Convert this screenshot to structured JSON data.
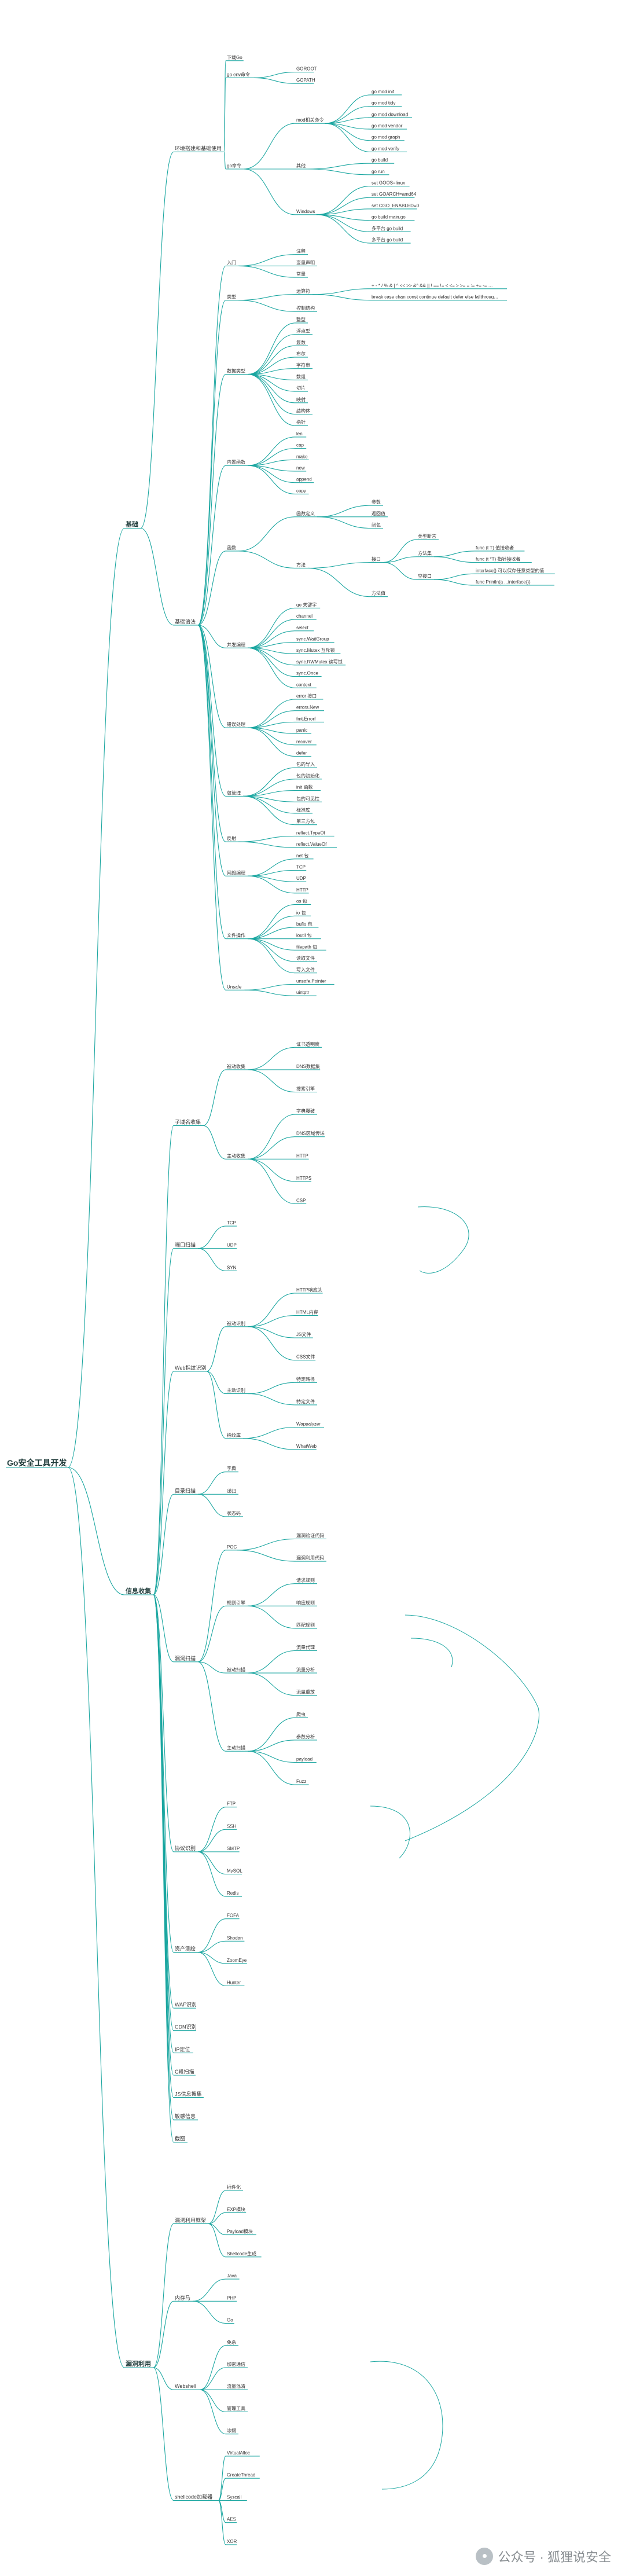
{
  "root": "Go安全工具开发",
  "branches": [
    {
      "label": "基础",
      "children": [
        {
          "label": "环境搭建和基础使用",
          "children": [
            {
              "label": "下载Go"
            },
            {
              "label": "go env命令",
              "children": [
                {
                  "label": "GOROOT"
                },
                {
                  "label": "GOPATH"
                }
              ]
            },
            {
              "label": "go命令",
              "children": [
                {
                  "label": "mod相关命令",
                  "children": [
                    {
                      "label": "go mod init"
                    },
                    {
                      "label": "go mod tidy"
                    },
                    {
                      "label": "go mod download"
                    },
                    {
                      "label": "go mod vendor"
                    },
                    {
                      "label": "go mod graph"
                    },
                    {
                      "label": "go mod verify"
                    }
                  ]
                },
                {
                  "label": "其他",
                  "children": [
                    {
                      "label": "go build"
                    },
                    {
                      "label": "go run"
                    }
                  ]
                },
                {
                  "label": "Windows",
                  "children": [
                    {
                      "label": "set GOOS=linux"
                    },
                    {
                      "label": "set GOARCH=amd64"
                    },
                    {
                      "label": "set CGO_ENABLED=0"
                    },
                    {
                      "label": "go build main.go"
                    },
                    {
                      "label": "多平台 go build"
                    },
                    {
                      "label": "多平台 go build"
                    }
                  ]
                }
              ]
            }
          ]
        },
        {
          "label": "基础语法",
          "children": [
            {
              "label": "入门",
              "children": [
                {
                  "label": "注释"
                },
                {
                  "label": "变量声明"
                },
                {
                  "label": "常量"
                }
              ]
            },
            {
              "label": "类型",
              "children": [
                {
                  "label": "运算符",
                  "children": [
                    {
                      "label": "+ - * / % & | ^ << >> &^ && || ! == != < <= > >= = := += -= *= /= %= &= |= ^= <<= >>= &^= ++ -- <- ..."
                    },
                    {
                      "label": "break case chan const continue default defer else fallthrough for func go goto if import interface map package range return select struct switch type var"
                    }
                  ]
                },
                {
                  "label": "控制结构"
                }
              ]
            },
            {
              "label": "数据类型",
              "children": [
                {
                  "label": "整型"
                },
                {
                  "label": "浮点型"
                },
                {
                  "label": "复数"
                },
                {
                  "label": "布尔"
                },
                {
                  "label": "字符串"
                },
                {
                  "label": "数组"
                },
                {
                  "label": "切片"
                },
                {
                  "label": "映射"
                },
                {
                  "label": "结构体"
                },
                {
                  "label": "指针"
                }
              ]
            },
            {
              "label": "内置函数",
              "children": [
                {
                  "label": "len"
                },
                {
                  "label": "cap"
                },
                {
                  "label": "make"
                },
                {
                  "label": "new"
                },
                {
                  "label": "append"
                },
                {
                  "label": "copy"
                }
              ]
            },
            {
              "label": "函数",
              "children": [
                {
                  "label": "函数定义",
                  "children": [
                    {
                      "label": "参数"
                    },
                    {
                      "label": "返回值"
                    },
                    {
                      "label": "闭包"
                    }
                  ]
                },
                {
                  "label": "方法",
                  "children": [
                    {
                      "label": "接口",
                      "children": [
                        {
                          "label": "类型断言"
                        },
                        {
                          "label": "方法集",
                          "children": [
                            {
                              "label": "func (t T) 值接收者"
                            },
                            {
                              "label": "func (t *T) 指针接收者"
                            }
                          ]
                        },
                        {
                          "label": "空接口",
                          "children": [
                            {
                              "label": "interface{} 可以保存任意类型的值"
                            },
                            {
                              "label": "func Println(a ...interface{})"
                            }
                          ]
                        }
                      ]
                    },
                    {
                      "label": "方法值"
                    }
                  ]
                }
              ]
            },
            {
              "label": "并发编程",
              "children": [
                {
                  "label": "go 关键字"
                },
                {
                  "label": "channel"
                },
                {
                  "label": "select"
                },
                {
                  "label": "sync.WaitGroup"
                },
                {
                  "label": "sync.Mutex 互斥锁"
                },
                {
                  "label": "sync.RWMutex 读写锁"
                },
                {
                  "label": "sync.Once"
                },
                {
                  "label": "context"
                }
              ]
            },
            {
              "label": "错误处理",
              "children": [
                {
                  "label": "error 接口"
                },
                {
                  "label": "errors.New"
                },
                {
                  "label": "fmt.Errorf"
                },
                {
                  "label": "panic"
                },
                {
                  "label": "recover"
                },
                {
                  "label": "defer"
                }
              ]
            },
            {
              "label": "包管理",
              "children": [
                {
                  "label": "包的导入"
                },
                {
                  "label": "包的初始化"
                },
                {
                  "label": "init 函数"
                },
                {
                  "label": "包的可见性"
                },
                {
                  "label": "标准库"
                },
                {
                  "label": "第三方包"
                }
              ]
            },
            {
              "label": "反射",
              "children": [
                {
                  "label": "reflect.TypeOf"
                },
                {
                  "label": "reflect.ValueOf"
                }
              ]
            },
            {
              "label": "网络编程",
              "children": [
                {
                  "label": "net 包"
                },
                {
                  "label": "TCP"
                },
                {
                  "label": "UDP"
                },
                {
                  "label": "HTTP"
                }
              ]
            },
            {
              "label": "文件操作",
              "children": [
                {
                  "label": "os 包"
                },
                {
                  "label": "io 包"
                },
                {
                  "label": "bufio 包"
                },
                {
                  "label": "ioutil 包"
                },
                {
                  "label": "filepath 包"
                },
                {
                  "label": "读取文件"
                },
                {
                  "label": "写入文件"
                }
              ]
            },
            {
              "label": "Unsafe",
              "children": [
                {
                  "label": "unsafe.Pointer"
                },
                {
                  "label": "uintptr"
                }
              ]
            }
          ]
        }
      ]
    },
    {
      "label": "信息收集",
      "children": [
        {
          "label": "子域名收集",
          "children": [
            {
              "label": "被动收集",
              "children": [
                {
                  "label": "证书透明度"
                },
                {
                  "label": "DNS数据集"
                },
                {
                  "label": "搜索引擎"
                }
              ]
            },
            {
              "label": "主动收集",
              "children": [
                {
                  "label": "字典爆破"
                },
                {
                  "label": "DNS区域传送"
                },
                {
                  "label": "HTTP"
                },
                {
                  "label": "HTTPS"
                },
                {
                  "label": "CSP"
                }
              ]
            }
          ]
        },
        {
          "label": "端口扫描",
          "children": [
            {
              "label": "TCP"
            },
            {
              "label": "UDP"
            },
            {
              "label": "SYN"
            }
          ]
        },
        {
          "label": "Web指纹识别",
          "children": [
            {
              "label": "被动识别",
              "children": [
                {
                  "label": "HTTP响应头"
                },
                {
                  "label": "HTML内容"
                },
                {
                  "label": "JS文件"
                },
                {
                  "label": "CSS文件"
                }
              ]
            },
            {
              "label": "主动识别",
              "children": [
                {
                  "label": "特定路径"
                },
                {
                  "label": "特定文件"
                }
              ]
            },
            {
              "label": "指纹库",
              "children": [
                {
                  "label": "Wappalyzer"
                },
                {
                  "label": "WhatWeb"
                }
              ]
            }
          ]
        },
        {
          "label": "目录扫描",
          "children": [
            {
              "label": "字典"
            },
            {
              "label": "递归"
            },
            {
              "label": "状态码"
            }
          ]
        },
        {
          "label": "漏洞扫描",
          "children": [
            {
              "label": "POC",
              "children": [
                {
                  "label": "漏洞验证代码"
                },
                {
                  "label": "漏洞利用代码"
                }
              ]
            },
            {
              "label": "规则引擎",
              "children": [
                {
                  "label": "请求规则"
                },
                {
                  "label": "响应规则"
                },
                {
                  "label": "匹配规则"
                }
              ]
            },
            {
              "label": "被动扫描",
              "children": [
                {
                  "label": "流量代理"
                },
                {
                  "label": "流量分析"
                },
                {
                  "label": "流量重放"
                }
              ]
            },
            {
              "label": "主动扫描",
              "children": [
                {
                  "label": "爬虫"
                },
                {
                  "label": "参数分析"
                },
                {
                  "label": "payload"
                },
                {
                  "label": "Fuzz"
                }
              ]
            }
          ]
        },
        {
          "label": "协议识别",
          "children": [
            {
              "label": "FTP"
            },
            {
              "label": "SSH"
            },
            {
              "label": "SMTP"
            },
            {
              "label": "MySQL"
            },
            {
              "label": "Redis"
            }
          ]
        },
        {
          "label": "资产测绘",
          "children": [
            {
              "label": "FOFA"
            },
            {
              "label": "Shodan"
            },
            {
              "label": "ZoomEye"
            },
            {
              "label": "Hunter"
            }
          ]
        },
        {
          "label": "WAF识别"
        },
        {
          "label": "CDN识别"
        },
        {
          "label": "IP定位"
        },
        {
          "label": "C段扫描"
        },
        {
          "label": "JS信息搜集"
        },
        {
          "label": "敏感信息"
        },
        {
          "label": "截图"
        }
      ]
    },
    {
      "label": "漏洞利用",
      "children": [
        {
          "label": "漏洞利用框架",
          "children": [
            {
              "label": "插件化"
            },
            {
              "label": "EXP模块"
            },
            {
              "label": "Payload模块"
            },
            {
              "label": "Shellcode生成"
            }
          ]
        },
        {
          "label": "内存马",
          "children": [
            {
              "label": "Java"
            },
            {
              "label": "PHP"
            },
            {
              "label": "Go"
            }
          ]
        },
        {
          "label": "Webshell",
          "children": [
            {
              "label": "免杀"
            },
            {
              "label": "加密通信"
            },
            {
              "label": "流量混淆"
            },
            {
              "label": "管理工具"
            },
            {
              "label": "冰蝎"
            }
          ]
        },
        {
          "label": "shellcode加载器",
          "children": [
            {
              "label": "VirtualAlloc"
            },
            {
              "label": "CreateThread"
            },
            {
              "label": "Syscall"
            },
            {
              "label": "AES"
            },
            {
              "label": "XOR"
            }
          ]
        }
      ]
    }
  ]
}
